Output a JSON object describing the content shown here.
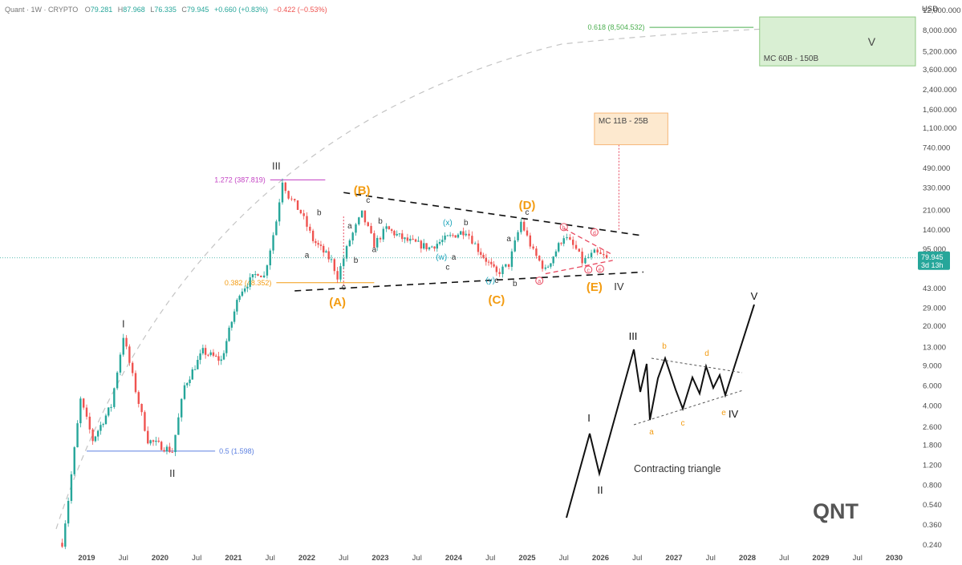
{
  "header": {
    "symbol": "Quant · 1W · CRYPTO",
    "open_label": "O",
    "open": "79.281",
    "high_label": "H",
    "high": "87.968",
    "low_label": "L",
    "low": "76.335",
    "close_label": "C",
    "close": "79.945",
    "change": "+0.660 (+0.83%)",
    "change2": "−0.422 (−0.53%)"
  },
  "currency": "USD",
  "watermark": "QNT",
  "price_tag": {
    "price": "79.945",
    "countdown": "3d 13h"
  },
  "colors": {
    "up": "#26a69a",
    "down": "#ef5350",
    "orange": "#f39c12",
    "cyan": "#17a2b8",
    "fib_blue": "#5b7fe0",
    "fib_purple": "#c445c4",
    "fib_green": "#4caf50",
    "target_green": "#d9efd3",
    "target_orange": "#fde9cf",
    "pink": "#e8465d"
  },
  "chart_data": {
    "type": "candlestick",
    "y_scale": "log",
    "y_ticks": [
      "12,000.000",
      "8,000.000",
      "5,200.000",
      "3,600.000",
      "2,400.000",
      "1,600.000",
      "1,100.000",
      "740.000",
      "490.000",
      "330.000",
      "210.000",
      "140.000",
      "95.000",
      "43.000",
      "29.000",
      "20.000",
      "13.000",
      "9.000",
      "6.000",
      "4.000",
      "2.600",
      "1.800",
      "1.200",
      "0.800",
      "0.540",
      "0.360",
      "0.240"
    ],
    "x_ticks": [
      {
        "label": "2019",
        "year": true
      },
      {
        "label": "Jul",
        "year": false
      },
      {
        "label": "2020",
        "year": true
      },
      {
        "label": "Jul",
        "year": false
      },
      {
        "label": "2021",
        "year": true
      },
      {
        "label": "Jul",
        "year": false
      },
      {
        "label": "2022",
        "year": true
      },
      {
        "label": "Jul",
        "year": false
      },
      {
        "label": "2023",
        "year": true
      },
      {
        "label": "Jul",
        "year": false
      },
      {
        "label": "2024",
        "year": true
      },
      {
        "label": "Jul",
        "year": false
      },
      {
        "label": "2025",
        "year": true
      },
      {
        "label": "Jul",
        "year": false
      },
      {
        "label": "2026",
        "year": true
      },
      {
        "label": "Jul",
        "year": false
      },
      {
        "label": "2027",
        "year": true
      },
      {
        "label": "Jul",
        "year": false
      },
      {
        "label": "2028",
        "year": true
      },
      {
        "label": "Jul",
        "year": false
      },
      {
        "label": "2029",
        "year": true
      },
      {
        "label": "Jul",
        "year": false
      },
      {
        "label": "2030",
        "year": true
      }
    ],
    "path_anchors": [
      [
        "2018-09",
        0.25
      ],
      [
        "2018-10",
        0.6
      ],
      [
        "2018-12",
        4.5
      ],
      [
        "2019-02",
        2.0
      ],
      [
        "2019-05",
        4.0
      ],
      [
        "2019-07",
        16.5
      ],
      [
        "2019-09",
        5.5
      ],
      [
        "2019-11",
        2.0
      ],
      [
        "2020-03",
        1.6
      ],
      [
        "2020-05",
        6.0
      ],
      [
        "2020-08",
        12.0
      ],
      [
        "2020-11",
        10.0
      ],
      [
        "2021-02",
        40.0
      ],
      [
        "2021-05",
        60.0
      ],
      [
        "2021-06",
        55.0
      ],
      [
        "2021-08",
        170.0
      ],
      [
        "2021-09",
        388.0
      ],
      [
        "2021-10",
        280.0
      ],
      [
        "2021-12",
        200.0
      ],
      [
        "2022-02",
        115.0
      ],
      [
        "2022-05",
        75.0
      ],
      [
        "2022-06",
        55.0
      ],
      [
        "2022-08",
        115.0
      ],
      [
        "2022-10",
        195.0
      ],
      [
        "2022-12",
        105.0
      ],
      [
        "2023-02",
        145.0
      ],
      [
        "2023-05",
        115.0
      ],
      [
        "2023-09",
        98.0
      ],
      [
        "2023-12",
        120.0
      ],
      [
        "2024-03",
        140.0
      ],
      [
        "2024-05",
        95.0
      ],
      [
        "2024-08",
        58.0
      ],
      [
        "2024-10",
        70.0
      ],
      [
        "2024-12",
        165.0
      ],
      [
        "2025-02",
        90.0
      ],
      [
        "2025-04",
        62.0
      ],
      [
        "2025-07",
        125.0
      ],
      [
        "2025-09",
        95.0
      ],
      [
        "2025-10",
        74.0
      ],
      [
        "2025-12",
        88.0
      ],
      [
        "2026-02",
        79.945
      ]
    ],
    "fib_levels": [
      {
        "label": "0.5 (1.598)",
        "value": 1.598,
        "color": "fib_blue"
      },
      {
        "label": "0.382 (48.352)",
        "value": 48.352,
        "color": "orange"
      },
      {
        "label": "1.272 (387.819)",
        "value": 387.819,
        "color": "fib_purple"
      },
      {
        "label": "0.618 (8,504.532)",
        "value": 8504.532,
        "color": "fib_green"
      }
    ],
    "targets": [
      {
        "label": "MC 60B - 150B",
        "wave": "V",
        "low": 3900,
        "high": 10500,
        "color": "target_green"
      },
      {
        "label": "MC 11B - 25B",
        "low": 790,
        "high": 1500,
        "color": "target_orange"
      }
    ],
    "wave_labels": {
      "major": [
        "I",
        "II",
        "III",
        "IV",
        "V"
      ],
      "corrective": [
        "(A)",
        "(B)",
        "(C)",
        "(D)",
        "(E)"
      ],
      "minor": [
        "a",
        "b",
        "c"
      ],
      "complex": [
        "(w)",
        "(x)",
        "(y)"
      ],
      "circled": [
        "a",
        "b",
        "c",
        "d",
        "e"
      ]
    },
    "diagram": {
      "title": "Contracting triangle",
      "labels": [
        "I",
        "II",
        "III",
        "IV",
        "V",
        "a",
        "b",
        "c",
        "d",
        "e"
      ]
    }
  }
}
